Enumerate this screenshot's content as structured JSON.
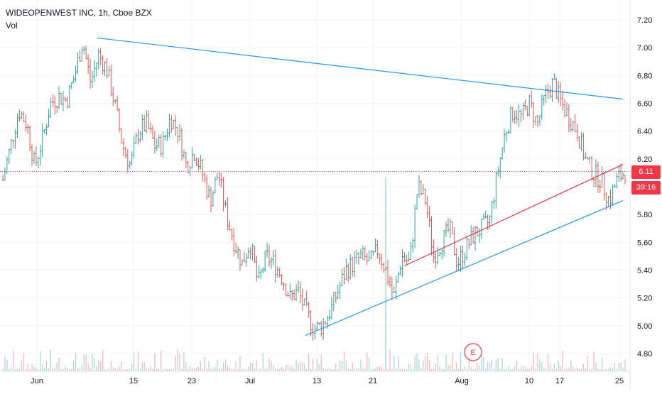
{
  "header": {
    "symbol": "WIDEOPENWEST INC, 1h, Cboe BZX",
    "volume_label": "Vol"
  },
  "badges": {
    "last_price": "6.11",
    "countdown": "39:16",
    "earnings_marker": "E"
  },
  "colors": {
    "up": "#26a69a",
    "down": "#ef5350",
    "trendline_blue": "#2196f3",
    "trendline_red": "#f23645",
    "price_line": "#f23645",
    "grid": "#f0f3fa",
    "axis_text": "#131722"
  },
  "chart_data": {
    "type": "ohlc",
    "x_axis": {
      "tick_labels": [
        "Jun",
        "15",
        "23",
        "Jul",
        "13",
        "21",
        "Aug",
        "10",
        "17",
        "25"
      ]
    },
    "y_axis": {
      "tick_labels": [
        "7.20",
        "7.00",
        "6.80",
        "6.60",
        "6.40",
        "6.20",
        "6.00",
        "5.80",
        "5.60",
        "5.40",
        "5.20",
        "5.00",
        "4.80"
      ],
      "ylim": [
        4.7,
        7.3
      ]
    },
    "last_price": 6.11,
    "price_path_closes": [
      6.05,
      6.3,
      6.55,
      6.45,
      6.15,
      6.35,
      6.6,
      6.65,
      6.62,
      6.8,
      7.05,
      6.75,
      6.95,
      6.85,
      6.6,
      6.3,
      6.15,
      6.4,
      6.45,
      6.3,
      6.3,
      6.5,
      6.4,
      6.15,
      6.25,
      6.1,
      5.9,
      6.1,
      5.8,
      5.6,
      5.45,
      5.6,
      5.3,
      5.5,
      5.45,
      5.35,
      5.2,
      5.25,
      5.1,
      4.98,
      5.0,
      5.1,
      5.25,
      5.4,
      5.45,
      5.5,
      5.45,
      5.55,
      5.4,
      5.2,
      5.5,
      5.45,
      6.0,
      5.9,
      5.5,
      5.6,
      5.7,
      5.45,
      5.55,
      5.65,
      5.7,
      5.75,
      6.1,
      6.4,
      6.55,
      6.5,
      6.6,
      6.45,
      6.65,
      6.75,
      6.6,
      6.5,
      6.4,
      6.2,
      6.1,
      6.05,
      5.9,
      6.05,
      6.11
    ],
    "trendlines": [
      {
        "color": "blue",
        "from": {
          "x": "Jun 10",
          "y": 7.07
        },
        "to": {
          "x": "Aug 25",
          "y": 6.63
        }
      },
      {
        "color": "blue",
        "from": {
          "x": "Jul 10",
          "y": 4.93
        },
        "to": {
          "x": "Aug 25",
          "y": 5.9
        }
      },
      {
        "color": "red",
        "from": {
          "x": "Jul 24",
          "y": 5.43
        },
        "to": {
          "x": "Aug 25",
          "y": 6.16
        }
      }
    ]
  }
}
